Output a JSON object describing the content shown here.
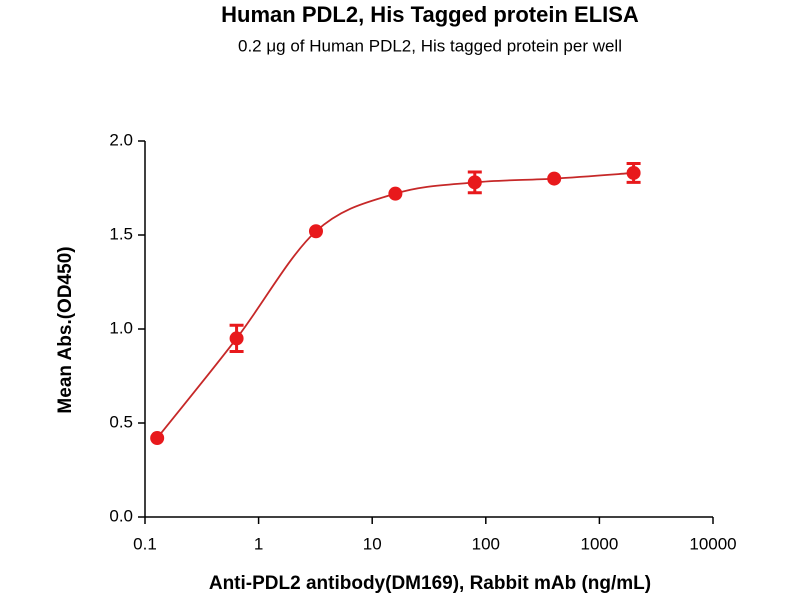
{
  "chart_data": {
    "type": "scatter",
    "title": "Human PDL2, His Tagged protein ELISA",
    "subtitle": "0.2 μg of Human PDL2, His tagged protein per well",
    "x_label": "Anti-PDL2 antibody(DM169), Rabbit mAb (ng/mL)",
    "y_label": "Mean Abs.(OD450)",
    "x_scale": "log",
    "x": [
      0.128,
      0.64,
      3.2,
      16,
      80,
      400,
      2000
    ],
    "series": [
      {
        "color": "#e8191c",
        "values": [
          0.42,
          0.95,
          1.52,
          1.72,
          1.78,
          1.8,
          1.83
        ],
        "errors": [
          null,
          0.07,
          null,
          null,
          0.055,
          null,
          0.05
        ]
      }
    ],
    "fit_line": true,
    "fit_color": "#c62828",
    "xlim": [
      0.1,
      10000
    ],
    "xticks": [
      0.1,
      1,
      10,
      100,
      1000,
      10000
    ],
    "ylim": [
      0,
      2
    ],
    "yticks": [
      {
        "value": 0,
        "label": "0.0"
      },
      0.5,
      {
        "value": 1,
        "label": "1.0"
      },
      1.5,
      {
        "value": 2,
        "label": "2.0"
      }
    ],
    "grid": false
  }
}
